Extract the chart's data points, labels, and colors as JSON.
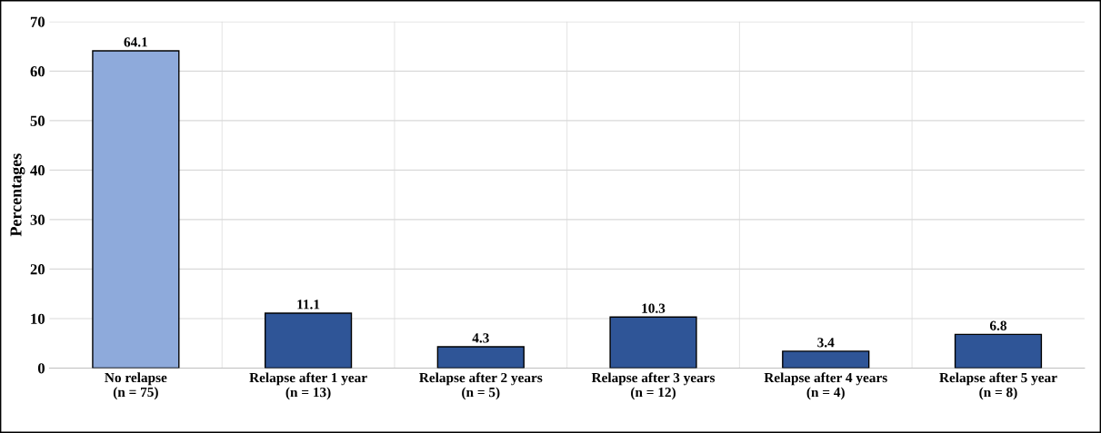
{
  "chart_data": {
    "type": "bar",
    "ylabel": "Percentages",
    "categories": [
      "No relapse\n(n = 75)",
      "Relapse after 1 year\n(n = 13)",
      "Relapse after 2 years\n(n = 5)",
      "Relapse after 3 years\n(n = 12)",
      "Relapse after 4 years\n(n = 4)",
      "Relapse after 5 year\n(n = 8)"
    ],
    "values": [
      64.1,
      11.1,
      4.3,
      10.3,
      3.4,
      6.8
    ],
    "colors": [
      "#8eaadb",
      "#2f5597",
      "#2f5597",
      "#2f5597",
      "#2f5597",
      "#2f5597"
    ],
    "ylim": [
      0,
      70
    ],
    "yticks": [
      0,
      10,
      20,
      30,
      40,
      50,
      60,
      70
    ],
    "data_labels": true,
    "grid": true
  }
}
